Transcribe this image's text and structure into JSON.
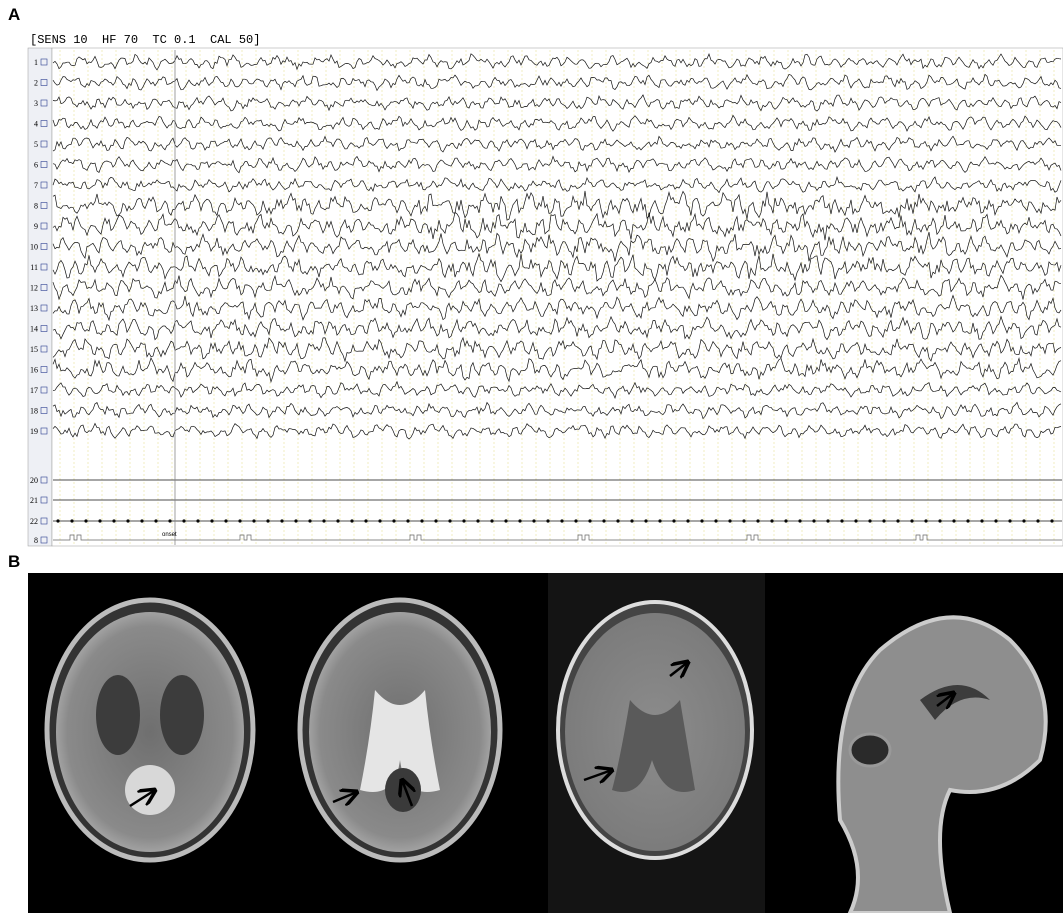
{
  "panel_a": {
    "label": "A",
    "header": "[SENS 10  HF 70  TC 0.1  CAL 50]",
    "channels": [
      "1",
      "2",
      "3",
      "4",
      "5",
      "6",
      "7",
      "8",
      "9",
      "10",
      "11",
      "12",
      "13",
      "14",
      "15",
      "16",
      "17",
      "18",
      "19",
      "20",
      "21",
      "22",
      "8"
    ],
    "marker": "onset"
  },
  "panel_b": {
    "label": "B"
  }
}
